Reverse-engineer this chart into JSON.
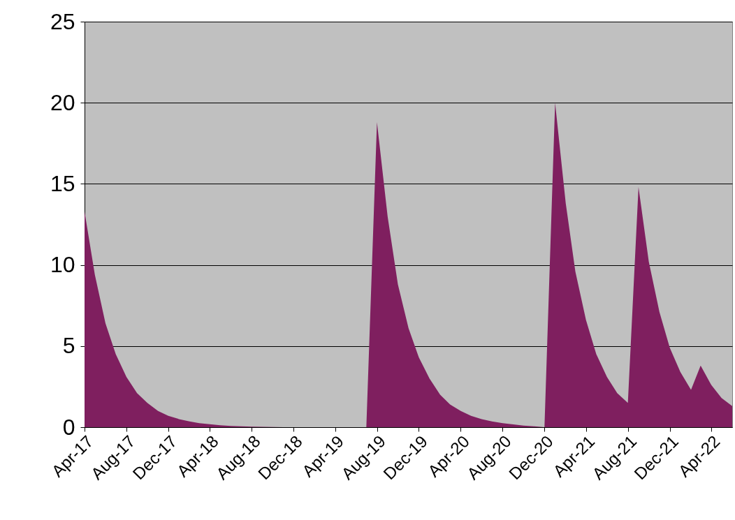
{
  "chart_data": {
    "type": "area",
    "x": [
      "2017-04",
      "2017-05",
      "2017-06",
      "2017-07",
      "2017-08",
      "2017-09",
      "2017-10",
      "2017-11",
      "2017-12",
      "2018-01",
      "2018-02",
      "2018-03",
      "2018-04",
      "2018-05",
      "2018-06",
      "2018-07",
      "2018-08",
      "2018-09",
      "2018-10",
      "2018-11",
      "2018-12",
      "2019-01",
      "2019-02",
      "2019-03",
      "2019-04",
      "2019-05",
      "2019-06",
      "2019-07",
      "2019-08",
      "2019-09",
      "2019-10",
      "2019-11",
      "2019-12",
      "2020-01",
      "2020-02",
      "2020-03",
      "2020-04",
      "2020-05",
      "2020-06",
      "2020-07",
      "2020-08",
      "2020-09",
      "2020-10",
      "2020-11",
      "2020-12",
      "2021-01",
      "2021-02",
      "2021-03",
      "2021-04",
      "2021-05",
      "2021-06",
      "2021-07",
      "2021-08",
      "2021-09",
      "2021-10",
      "2021-11",
      "2021-12",
      "2022-01",
      "2022-02",
      "2022-03",
      "2022-04",
      "2022-05",
      "2022-06"
    ],
    "xlim": [
      "2017-04",
      "2022-06"
    ],
    "xticks": [
      {
        "value": "2017-04",
        "label": "Apr-17"
      },
      {
        "value": "2017-08",
        "label": "Aug-17"
      },
      {
        "value": "2017-12",
        "label": "Dec-17"
      },
      {
        "value": "2018-04",
        "label": "Apr-18"
      },
      {
        "value": "2018-08",
        "label": "Aug-18"
      },
      {
        "value": "2018-12",
        "label": "Dec-18"
      },
      {
        "value": "2019-04",
        "label": "Apr-19"
      },
      {
        "value": "2019-08",
        "label": "Aug-19"
      },
      {
        "value": "2019-12",
        "label": "Dec-19"
      },
      {
        "value": "2020-04",
        "label": "Apr-20"
      },
      {
        "value": "2020-08",
        "label": "Aug-20"
      },
      {
        "value": "2020-12",
        "label": "Dec-20"
      },
      {
        "value": "2021-04",
        "label": "Apr-21"
      },
      {
        "value": "2021-08",
        "label": "Aug-21"
      },
      {
        "value": "2021-12",
        "label": "Dec-21"
      },
      {
        "value": "2022-04",
        "label": "Apr-22"
      }
    ],
    "series": [
      {
        "color": "#7f1f5f",
        "values": [
          13.3,
          9.4,
          6.4,
          4.5,
          3.1,
          2.1,
          1.5,
          1.0,
          0.7,
          0.5,
          0.35,
          0.25,
          0.18,
          0.12,
          0.08,
          0.05,
          0.03,
          0.02,
          0.01,
          0,
          0,
          0,
          0,
          0,
          0,
          0,
          0,
          0,
          18.8,
          13.0,
          8.8,
          6.1,
          4.3,
          3.0,
          2.0,
          1.4,
          1.0,
          0.7,
          0.5,
          0.35,
          0.25,
          0.17,
          0.1,
          0.05,
          0,
          20.0,
          13.8,
          9.6,
          6.6,
          4.5,
          3.1,
          2.1,
          1.5,
          14.8,
          10.2,
          7.1,
          4.9,
          3.4,
          2.3,
          3.8,
          2.6,
          1.8,
          1.3
        ]
      }
    ],
    "ylim": [
      0,
      25
    ],
    "yticks": [
      0,
      5,
      10,
      15,
      20,
      25
    ],
    "grid": "y",
    "legend": false
  }
}
